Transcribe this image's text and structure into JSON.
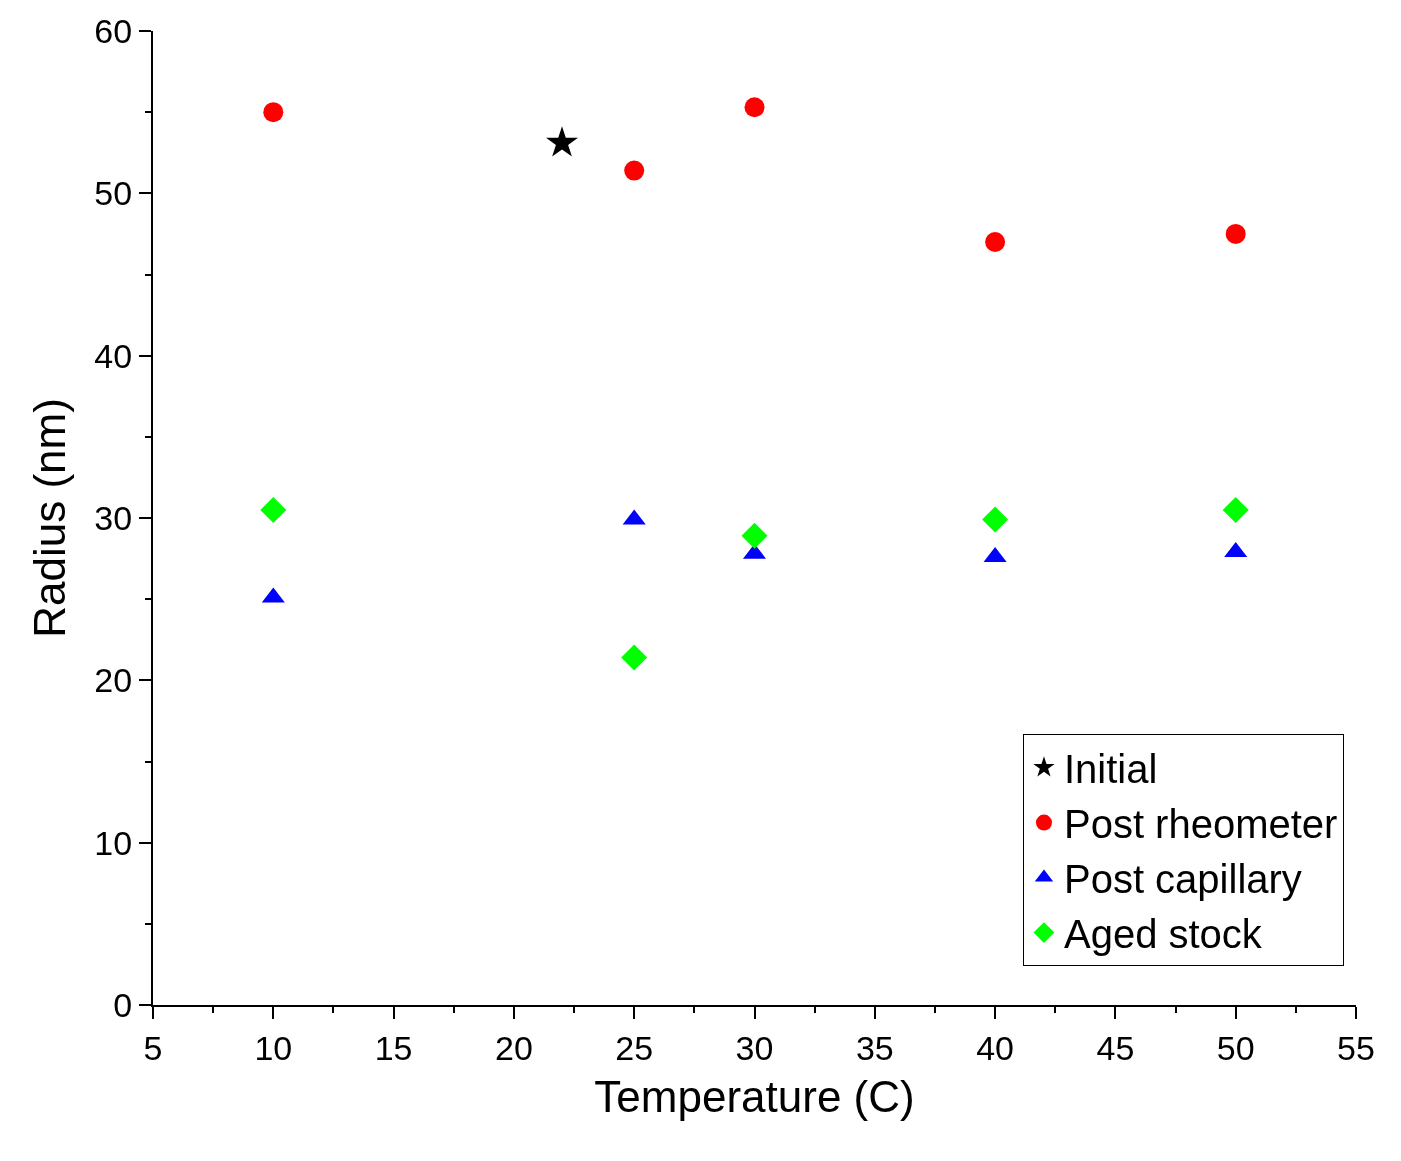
{
  "chart_data": {
    "type": "scatter",
    "xlabel": "Temperature (C)",
    "ylabel": "Radius (nm)",
    "xlim": [
      5,
      55
    ],
    "ylim": [
      0,
      60
    ],
    "xticks": [
      5,
      {
        "value": 7.5,
        "label": null
      },
      10,
      {
        "value": 12.5,
        "label": null
      },
      15,
      {
        "value": 17.5,
        "label": null
      },
      20,
      {
        "value": 22.5,
        "label": null
      },
      25,
      {
        "value": 27.5,
        "label": null
      },
      30,
      {
        "value": 32.5,
        "label": null
      },
      35,
      {
        "value": 37.5,
        "label": null
      },
      40,
      {
        "value": 42.5,
        "label": null
      },
      45,
      {
        "value": 47.5,
        "label": null
      },
      50,
      {
        "value": 52.5,
        "label": null
      },
      55
    ],
    "yticks": [
      0,
      {
        "value": 5,
        "label": null
      },
      10,
      {
        "value": 15,
        "label": null
      },
      20,
      {
        "value": 25,
        "label": null
      },
      30,
      {
        "value": 35,
        "label": null
      },
      40,
      {
        "value": 45,
        "label": null
      },
      50,
      {
        "value": 55,
        "label": null
      },
      60
    ],
    "legend": "bottom right",
    "series": [
      {
        "name": "Initial",
        "color": "#000000",
        "marker": "star",
        "x": [
          22
        ],
        "values": [
          53.1
        ]
      },
      {
        "name": "Post rheometer",
        "color": "#ff0000",
        "marker": "circle",
        "x": [
          10,
          25,
          30,
          40,
          50
        ],
        "values": [
          55.0,
          51.4,
          55.3,
          47.0,
          47.5
        ]
      },
      {
        "name": "Post capillary",
        "color": "#0000ff",
        "marker": "triangle",
        "x": [
          10,
          25,
          30,
          40,
          50
        ],
        "values": [
          25.1,
          29.9,
          27.8,
          27.6,
          27.9
        ]
      },
      {
        "name": "Aged stock",
        "color": "#00ff00",
        "marker": "diamond",
        "x": [
          10,
          25,
          30,
          40,
          50
        ],
        "values": [
          30.5,
          21.4,
          28.9,
          29.9,
          30.5
        ]
      }
    ]
  }
}
